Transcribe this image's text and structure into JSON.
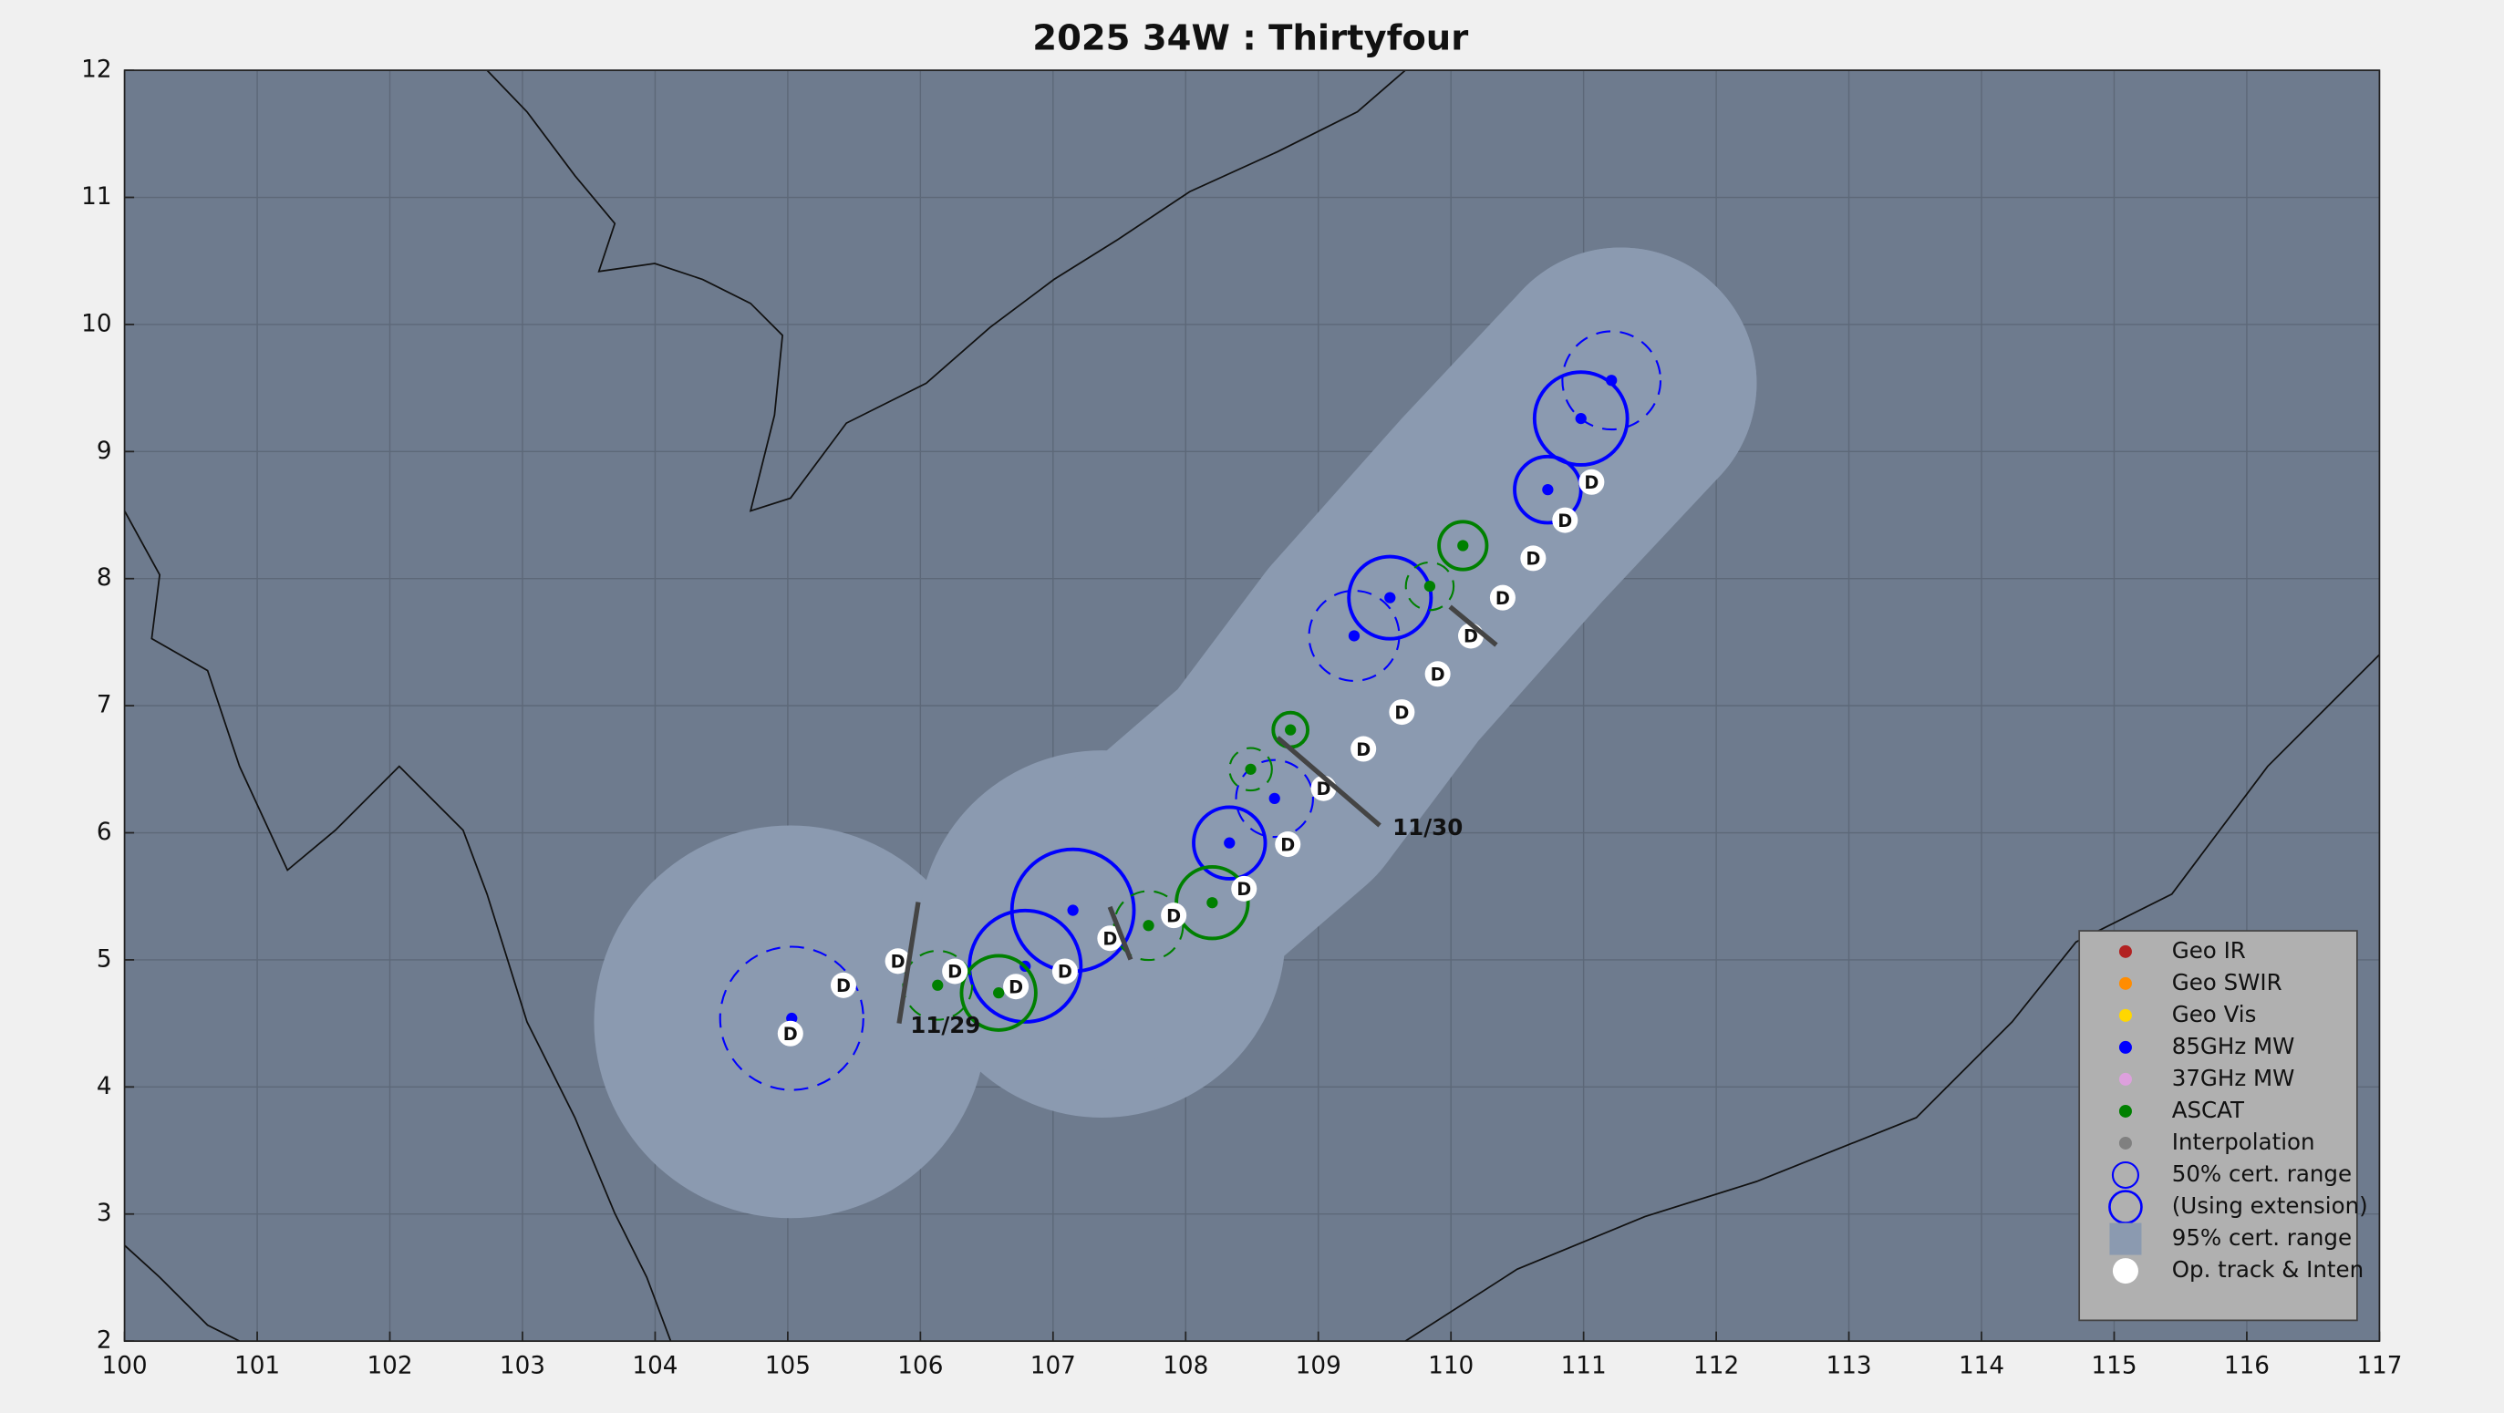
{
  "chart_data": {
    "type": "track",
    "title": "2025  34W :  Thirtyfour",
    "xlim": [
      100,
      117
    ],
    "ylim": [
      2,
      12
    ],
    "xticks": [
      100,
      101,
      102,
      103,
      104,
      105,
      106,
      107,
      108,
      109,
      110,
      111,
      112,
      113,
      114,
      115,
      116,
      117
    ],
    "yticks": [
      2,
      3,
      4,
      5,
      6,
      7,
      8,
      9,
      10,
      11,
      12
    ],
    "grid": true,
    "series": [
      {
        "name": "Geo IR",
        "color": "#b22222",
        "x": [],
        "y": [],
        "radius": [],
        "dashed": []
      },
      {
        "name": "Geo SWIR",
        "color": "#ff8c00",
        "x": [],
        "y": [],
        "radius": [],
        "dashed": []
      },
      {
        "name": "Geo Vis",
        "color": "#ffd700",
        "x": [],
        "y": [],
        "radius": [],
        "dashed": []
      },
      {
        "name": "85GHz MW",
        "color": "#0000ff",
        "x": [
          105.03,
          106.79,
          107.15,
          108.33,
          108.67,
          109.27,
          109.54,
          110.73,
          110.98,
          111.21
        ],
        "y": [
          4.54,
          4.95,
          5.39,
          5.92,
          6.27,
          7.55,
          7.85,
          8.7,
          9.26,
          9.56
        ],
        "radius": [
          0.54,
          0.42,
          0.46,
          0.27,
          0.29,
          0.34,
          0.31,
          0.25,
          0.35,
          0.37
        ],
        "dashed": [
          true,
          false,
          false,
          false,
          true,
          true,
          false,
          false,
          false,
          true
        ]
      },
      {
        "name": "37GHz MW",
        "color": "#dda0dd",
        "x": [],
        "y": [],
        "radius": [],
        "dashed": []
      },
      {
        "name": "ASCAT",
        "color": "#008000",
        "x": [
          106.13,
          106.59,
          107.72,
          108.2,
          108.49,
          108.79,
          109.84,
          110.09
        ],
        "y": [
          4.8,
          4.74,
          5.27,
          5.45,
          6.5,
          6.81,
          7.94,
          8.26
        ],
        "radius": [
          0.26,
          0.28,
          0.26,
          0.27,
          0.16,
          0.13,
          0.18,
          0.18
        ],
        "dashed": [
          true,
          false,
          true,
          false,
          true,
          false,
          true,
          false
        ]
      },
      {
        "name": "Interpolation",
        "color": "#808080",
        "x": [],
        "y": [],
        "radius": [],
        "dashed": []
      },
      {
        "name": "Op. track & Inten",
        "color": "#ffffff",
        "x": [
          105.02,
          105.42,
          105.83,
          106.26,
          106.72,
          107.09,
          107.43,
          107.91,
          108.44,
          108.77,
          109.04,
          109.34,
          109.63,
          109.9,
          110.15,
          110.39,
          110.62,
          110.86,
          111.06
        ],
        "y": [
          4.42,
          4.8,
          4.99,
          4.91,
          4.79,
          4.91,
          5.17,
          5.35,
          5.56,
          5.91,
          6.35,
          6.66,
          6.95,
          7.25,
          7.55,
          7.85,
          8.16,
          8.46,
          8.76
        ],
        "value_labels": [
          "D",
          "D",
          "D",
          "D",
          "D",
          "D",
          "D",
          "D",
          "D",
          "D",
          "D",
          "D",
          "D",
          "D",
          "D",
          "D",
          "D",
          "D",
          "D"
        ]
      }
    ],
    "legend_items": [
      {
        "label": "50% cert. range",
        "marker": "circle",
        "color": "#0000ff"
      },
      {
        "label": "(Using extension)",
        "marker": "big-circle",
        "color": "#0000ff"
      },
      {
        "label": "95% cert. range",
        "marker": "square",
        "color": "#8b9ab0"
      }
    ],
    "annotations": [
      "11/29",
      "11/30"
    ]
  }
}
